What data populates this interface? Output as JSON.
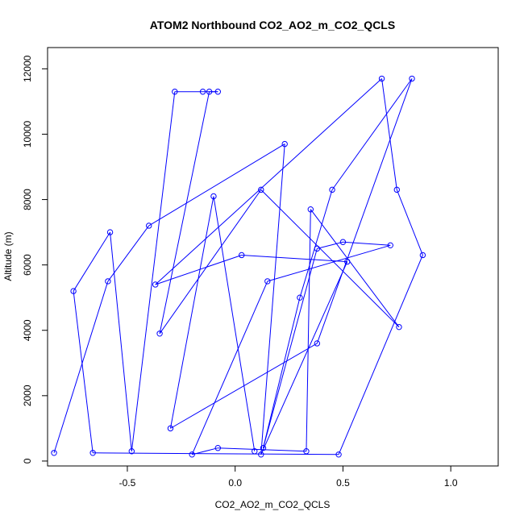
{
  "chart_data": {
    "type": "scatter",
    "title": "ATOM2 Northbound CO2_AO2_m_CO2_QCLS",
    "xlabel": "CO2_AO2_m_CO2_QCLS",
    "ylabel": "Altitude (m)",
    "xlim": [
      -0.87,
      1.22
    ],
    "ylim": [
      -150,
      12650
    ],
    "x_ticks": [
      -0.5,
      0.0,
      0.5,
      1.0
    ],
    "x_tick_labels": [
      "-0.5",
      "0.0",
      "0.5",
      "1.0"
    ],
    "y_ticks": [
      0,
      2000,
      4000,
      6000,
      8000,
      10000,
      12000
    ],
    "y_tick_labels": [
      "0",
      "2000",
      "4000",
      "6000",
      "8000",
      "10000",
      "12000"
    ],
    "grid": false,
    "legend": "none",
    "series_color": "#0000ff",
    "marker": "open-circle",
    "connected": true,
    "points": [
      {
        "x": -0.84,
        "y": 250
      },
      {
        "x": -0.59,
        "y": 5500
      },
      {
        "x": -0.4,
        "y": 7200
      },
      {
        "x": 0.23,
        "y": 9700
      },
      {
        "x": 0.12,
        "y": 200
      },
      {
        "x": 0.52,
        "y": 6100
      },
      {
        "x": 0.03,
        "y": 6300
      },
      {
        "x": -0.37,
        "y": 5400
      },
      {
        "x": 0.68,
        "y": 11700
      },
      {
        "x": 0.75,
        "y": 8300
      },
      {
        "x": 0.87,
        "y": 6300
      },
      {
        "x": 0.48,
        "y": 200
      },
      {
        "x": -0.66,
        "y": 250
      },
      {
        "x": -0.75,
        "y": 5200
      },
      {
        "x": -0.58,
        "y": 7000
      },
      {
        "x": -0.48,
        "y": 300
      },
      {
        "x": -0.28,
        "y": 11300
      },
      {
        "x": -0.15,
        "y": 11300
      },
      {
        "x": -0.08,
        "y": 11300
      },
      {
        "x": -0.12,
        "y": 11300
      },
      {
        "x": -0.35,
        "y": 3900
      },
      {
        "x": 0.12,
        "y": 8300
      },
      {
        "x": 0.76,
        "y": 4100
      },
      {
        "x": 0.35,
        "y": 7700
      },
      {
        "x": 0.33,
        "y": 300
      },
      {
        "x": -0.08,
        "y": 400
      },
      {
        "x": -0.2,
        "y": 200
      },
      {
        "x": 0.15,
        "y": 5500
      },
      {
        "x": 0.72,
        "y": 6600
      },
      {
        "x": 0.5,
        "y": 6700
      },
      {
        "x": 0.38,
        "y": 6500
      },
      {
        "x": 0.13,
        "y": 400
      },
      {
        "x": 0.3,
        "y": 5000
      },
      {
        "x": 0.45,
        "y": 8300
      },
      {
        "x": 0.82,
        "y": 11700
      },
      {
        "x": 0.38,
        "y": 3600
      },
      {
        "x": -0.3,
        "y": 1000
      },
      {
        "x": -0.1,
        "y": 8100
      },
      {
        "x": 0.09,
        "y": 300
      }
    ]
  }
}
